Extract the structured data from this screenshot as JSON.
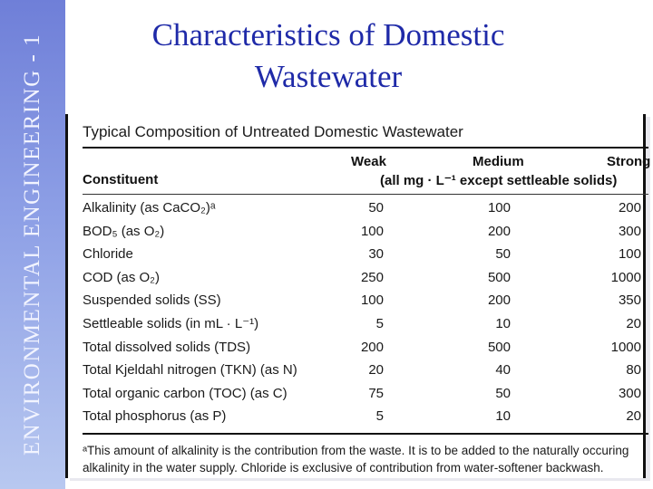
{
  "sidebar": {
    "label": "ENVIRONMENTAL ENGINEERING - 1"
  },
  "slide": {
    "title_line1": "Characteristics of Domestic",
    "title_line2": "Wastewater"
  },
  "table": {
    "title": "Typical Composition of Untreated Domestic Wastewater",
    "headers": {
      "constituent": "Constituent",
      "weak": "Weak",
      "medium": "Medium",
      "strong": "Strong",
      "units": "(all mg · L⁻¹ except settleable solids)"
    },
    "rows": [
      {
        "name": "Alkalinity (as CaCO₂)ᵃ",
        "weak": "50",
        "medium": "100",
        "strong": "200"
      },
      {
        "name": "BOD₅ (as O₂)",
        "weak": "100",
        "medium": "200",
        "strong": "300"
      },
      {
        "name": "Chloride",
        "weak": "30",
        "medium": "50",
        "strong": "100"
      },
      {
        "name": "COD (as O₂)",
        "weak": "250",
        "medium": "500",
        "strong": "1000"
      },
      {
        "name": "Suspended solids (SS)",
        "weak": "100",
        "medium": "200",
        "strong": "350"
      },
      {
        "name": "Settleable solids (in mL · L⁻¹)",
        "weak": "5",
        "medium": "10",
        "strong": "20"
      },
      {
        "name": "Total dissolved solids (TDS)",
        "weak": "200",
        "medium": "500",
        "strong": "1000"
      },
      {
        "name": "Total Kjeldahl nitrogen (TKN) (as N)",
        "weak": "20",
        "medium": "40",
        "strong": "80"
      },
      {
        "name": "Total organic carbon (TOC) (as C)",
        "weak": "75",
        "medium": "50",
        "strong": "300"
      },
      {
        "name": "Total phosphorus (as P)",
        "weak": "5",
        "medium": "10",
        "strong": "20"
      }
    ],
    "footnote": "ᵃThis amount of alkalinity is the contribution from the waste. It is to be added to the naturally occuring alkalinity in the water supply. Chloride is exclusive of contribution from water-softener backwash."
  }
}
